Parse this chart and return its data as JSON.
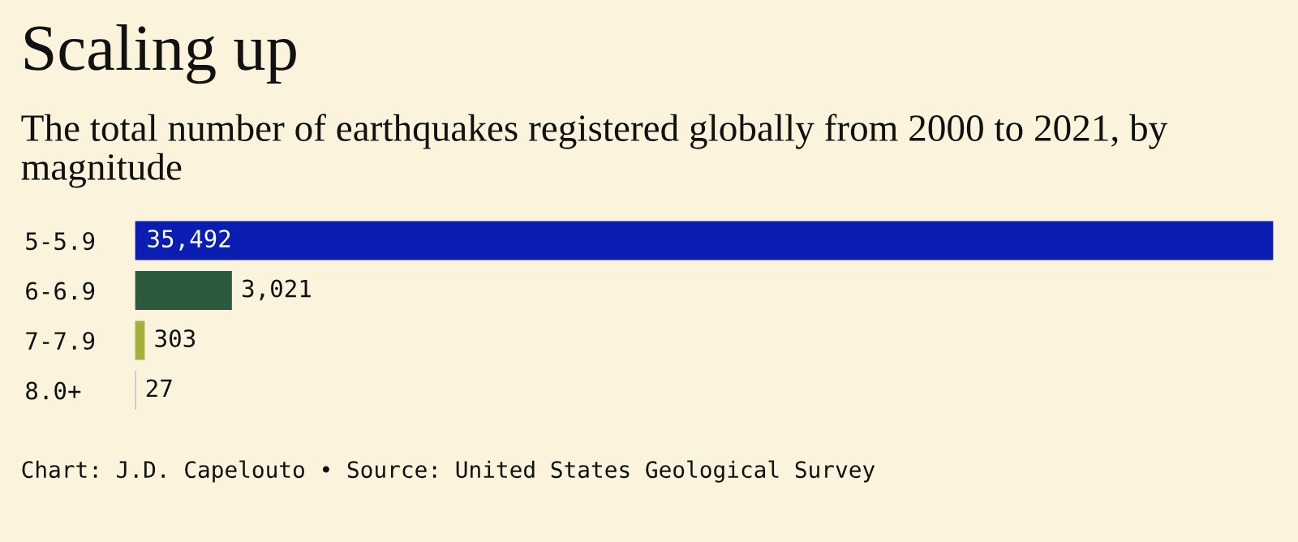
{
  "chart_data": {
    "type": "bar",
    "orientation": "horizontal",
    "title": "Scaling up",
    "subtitle": "The total number of earthquakes registered globally from 2000 to 2021, by magnitude",
    "categories": [
      "5-5.9",
      "6-6.9",
      "7-7.9",
      "8.0+"
    ],
    "values": [
      35492,
      3021,
      303,
      27
    ],
    "colors": [
      "#0a1eb4",
      "#2b5a3e",
      "#a3b13a",
      "#b07ed8"
    ],
    "value_labels": [
      "35,492",
      "3,021",
      "303",
      "27"
    ],
    "grid": false,
    "legend": false,
    "annotations": [
      "Chart: J.D. Capelouto • Source: United States Geological Survey"
    ]
  }
}
